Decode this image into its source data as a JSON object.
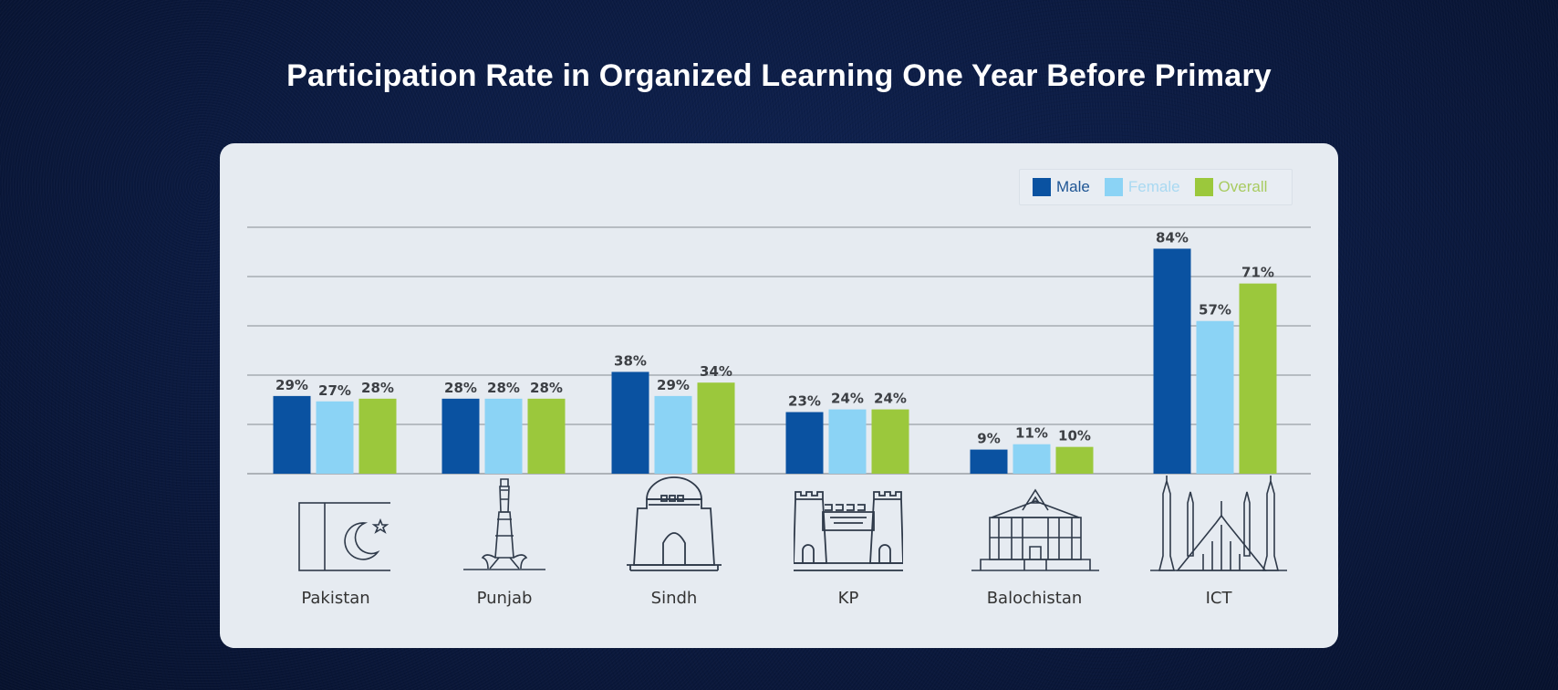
{
  "title": "Participation Rate in Organized Learning One Year Before Primary",
  "colors": {
    "male": "#0a52a1",
    "female": "#8bd3f5",
    "overall": "#9bc83c",
    "grid": "#9aa0a6",
    "label": "#3c3f44"
  },
  "legend": [
    {
      "name": "Male",
      "color": "#0a52a1",
      "text_color": "#1e5594"
    },
    {
      "name": "Female",
      "color": "#8bd3f5",
      "text_color": "#a9d9f2"
    },
    {
      "name": "Overall",
      "color": "#9bc83c",
      "text_color": "#a8cb60"
    }
  ],
  "regions": [
    {
      "name": "Pakistan",
      "icon": "pakistan-flag-icon"
    },
    {
      "name": "Punjab",
      "icon": "minar-e-pakistan-icon"
    },
    {
      "name": "Sindh",
      "icon": "mazar-e-quaid-icon"
    },
    {
      "name": "KP",
      "icon": "fort-gate-icon"
    },
    {
      "name": "Balochistan",
      "icon": "assembly-building-icon"
    },
    {
      "name": "ICT",
      "icon": "faisal-mosque-icon"
    }
  ],
  "chart_data": {
    "type": "bar",
    "title": "Participation Rate in Organized Learning One Year Before Primary",
    "xlabel": "",
    "ylabel": "",
    "categories": [
      "Pakistan",
      "Punjab",
      "Sindh",
      "KP",
      "Balochistan",
      "ICT"
    ],
    "series": [
      {
        "name": "Male",
        "values": [
          29,
          28,
          38,
          23,
          9,
          84
        ]
      },
      {
        "name": "Female",
        "values": [
          27,
          28,
          29,
          24,
          11,
          57
        ]
      },
      {
        "name": "Overall",
        "values": [
          28,
          28,
          34,
          24,
          10,
          71
        ]
      }
    ],
    "value_format": "%",
    "ylim": [
      0,
      92
    ],
    "gridlines": 5,
    "grid": true,
    "y_tick_labels_shown": false,
    "legend_position": "top-right"
  }
}
